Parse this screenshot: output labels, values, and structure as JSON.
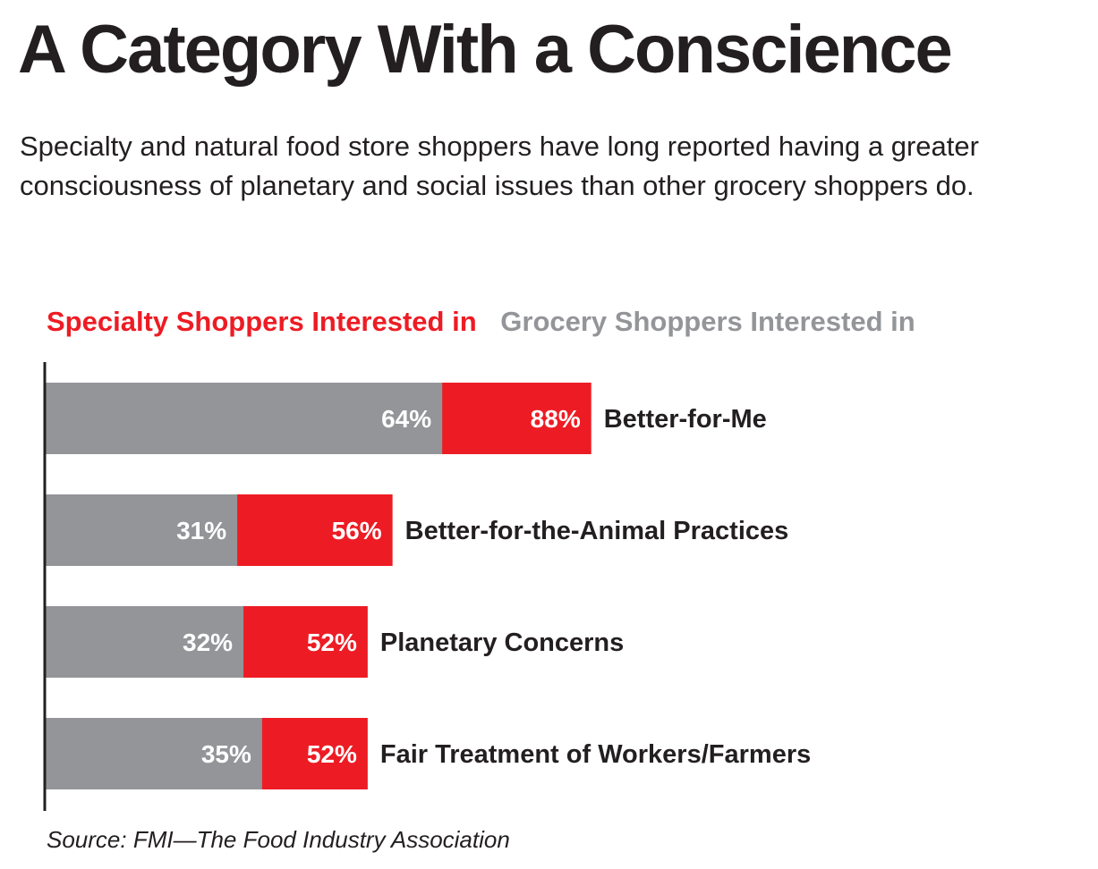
{
  "title": "A Category With a Conscience",
  "subtitle": "Specialty and natural food store shoppers have long reported having a greater consciousness of planetary and social issues than other grocery shoppers do.",
  "source": "Source: FMI—The Food Industry Association",
  "chart_data": {
    "type": "bar",
    "orientation": "horizontal",
    "layout": "overlapping",
    "categories": [
      "Better-for-Me",
      "Better-for-the-Animal Practices",
      "Planetary Concerns",
      "Fair Treatment of Workers/Farmers"
    ],
    "series": [
      {
        "name": "Specialty Shoppers Interested in",
        "color": "#ed1c24",
        "values": [
          88,
          56,
          52,
          52
        ],
        "labels": [
          "88%",
          "56%",
          "52%",
          "52%"
        ]
      },
      {
        "name": "Grocery Shoppers Interested in",
        "color": "#939598",
        "values": [
          64,
          31,
          32,
          35
        ],
        "labels": [
          "64%",
          "31%",
          "32%",
          "35%"
        ]
      }
    ],
    "xlim": [
      0,
      100
    ],
    "unit": "%",
    "grid": false,
    "legend": "top"
  }
}
